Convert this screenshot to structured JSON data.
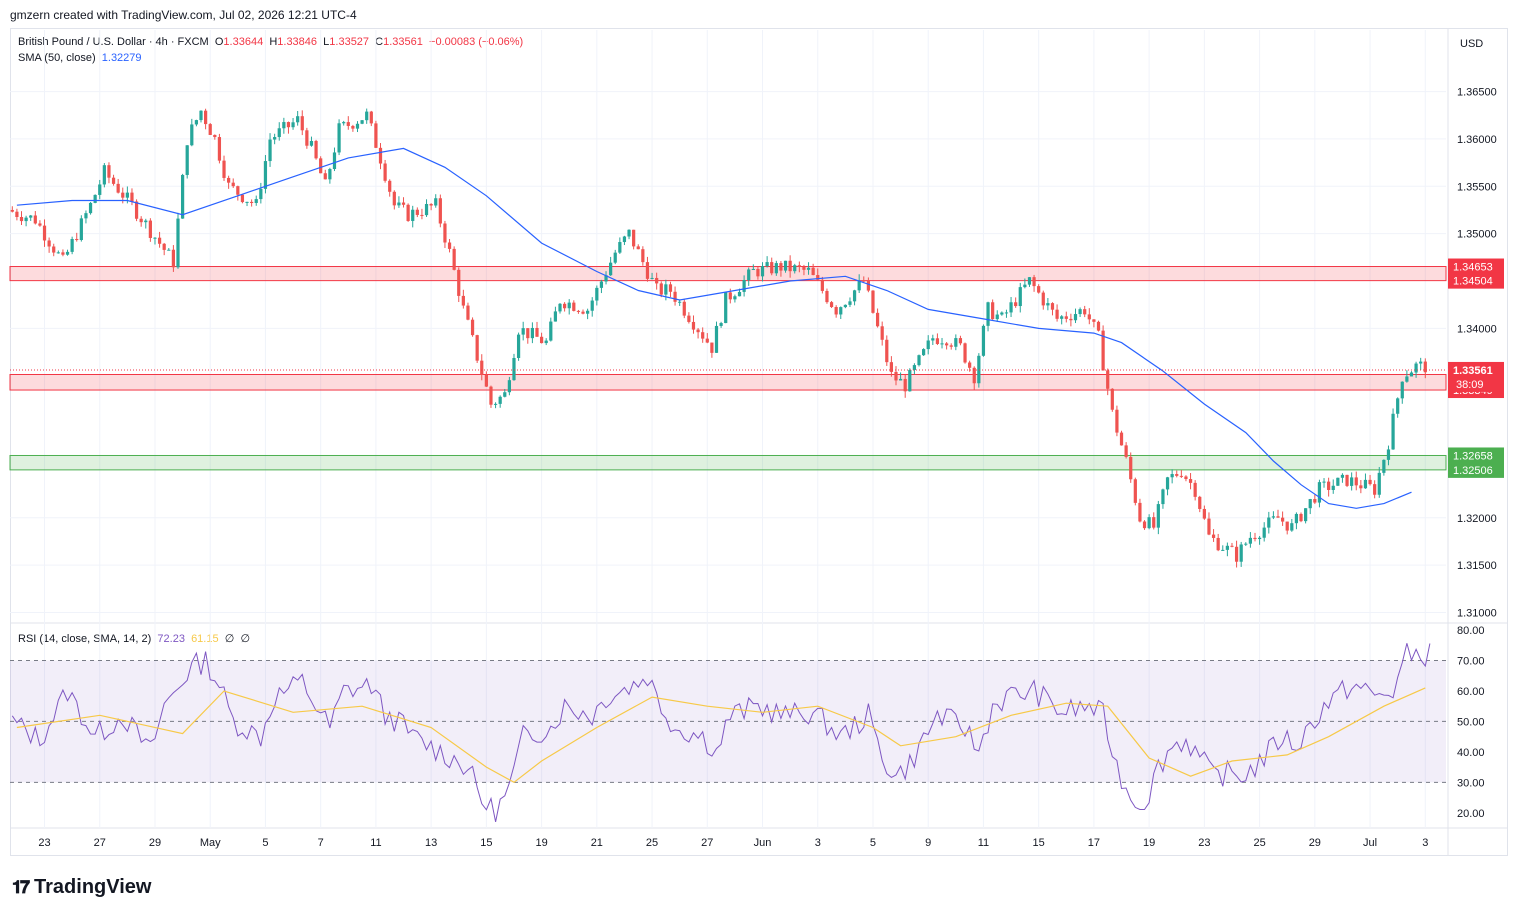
{
  "header": {
    "credit": "gmzern created with TradingView.com, Jul 02, 2026 12:21 UTC-4",
    "symbol": "British Pound / U.S. Dollar · 4h · FXCM",
    "o_label": "O",
    "o": "1.33644",
    "h_label": "H",
    "h": "1.33846",
    "l_label": "L",
    "l": "1.33527",
    "c_label": "C",
    "c": "1.33561",
    "change": "−0.00083 (−0.06%)",
    "sma_label": "SMA (50, close)",
    "sma_value": "1.32279",
    "rsi_label": "RSI (14, close, SMA, 14, 2)",
    "rsi_value": "72.23",
    "rsi_ma_value": "61.15",
    "rsi_extra1": "∅",
    "rsi_extra2": "∅",
    "currency": "USD",
    "logo": "TradingView"
  },
  "colors": {
    "up": "#26a69a",
    "down": "#ef5350",
    "sma": "#2962ff",
    "rsi": "#7e57c2",
    "rsi_ma": "#f7c948",
    "resistance": "#f23645",
    "support": "#4caf50"
  },
  "chart_data": {
    "type": "candlestick",
    "price_axis": {
      "ticks": [
        "1.36500",
        "1.36000",
        "1.35500",
        "1.35000",
        "1.34000",
        "1.32000",
        "1.31500",
        "1.31000"
      ],
      "range": [
        1.309,
        1.3715
      ]
    },
    "x_axis": {
      "labels": [
        "23",
        "27",
        "29",
        "May",
        "5",
        "7",
        "11",
        "13",
        "15",
        "19",
        "21",
        "25",
        "27",
        "Jun",
        "3",
        "5",
        "9",
        "11",
        "15",
        "17",
        "19",
        "23",
        "25",
        "29",
        "Jul",
        "3"
      ],
      "label_positions": [
        2,
        6,
        10,
        14,
        18,
        22,
        26,
        30,
        34,
        38,
        42,
        46,
        50,
        54,
        58,
        62,
        66,
        70,
        74,
        78,
        82,
        86,
        90,
        94,
        98,
        102
      ]
    },
    "zones": [
      {
        "type": "resistance",
        "top": 1.34653,
        "bottom": 1.34504,
        "top_label": "1.34653",
        "bottom_label": "1.34504"
      },
      {
        "type": "resistance",
        "top": 1.33513,
        "bottom": 1.33349,
        "top_label": "1.33513",
        "bottom_label": "1.33349"
      },
      {
        "type": "support",
        "top": 1.32658,
        "bottom": 1.32506,
        "top_label": "1.32658",
        "bottom_label": "1.32506"
      }
    ],
    "last_price": {
      "value": 1.33561,
      "label": "1.33561",
      "countdown": "38:09"
    },
    "keypoints": [
      [
        0,
        1.3525
      ],
      [
        2,
        1.3515
      ],
      [
        4,
        1.347
      ],
      [
        6,
        1.353
      ],
      [
        7,
        1.3565
      ],
      [
        9,
        1.353
      ],
      [
        11,
        1.349
      ],
      [
        12,
        1.347
      ],
      [
        13,
        1.36
      ],
      [
        14,
        1.363
      ],
      [
        15,
        1.36
      ],
      [
        16,
        1.355
      ],
      [
        18,
        1.353
      ],
      [
        19,
        1.36
      ],
      [
        21,
        1.362
      ],
      [
        22,
        1.359
      ],
      [
        23,
        1.355
      ],
      [
        24,
        1.361
      ],
      [
        26,
        1.3625
      ],
      [
        27,
        1.358
      ],
      [
        28,
        1.353
      ],
      [
        29,
        1.352
      ],
      [
        31,
        1.353
      ],
      [
        32,
        1.348
      ],
      [
        33,
        1.342
      ],
      [
        34,
        1.337
      ],
      [
        35,
        1.332
      ],
      [
        36,
        1.333
      ],
      [
        37,
        1.34
      ],
      [
        39,
        1.3385
      ],
      [
        40,
        1.343
      ],
      [
        42,
        1.342
      ],
      [
        43,
        1.345
      ],
      [
        44,
        1.348
      ],
      [
        45,
        1.35
      ],
      [
        47,
        1.344
      ],
      [
        48,
        1.344
      ],
      [
        50,
        1.34
      ],
      [
        51,
        1.338
      ],
      [
        52,
        1.343
      ],
      [
        54,
        1.346
      ],
      [
        56,
        1.3465
      ],
      [
        58,
        1.346
      ],
      [
        60,
        1.342
      ],
      [
        62,
        1.345
      ],
      [
        63,
        1.34
      ],
      [
        64,
        1.335
      ],
      [
        65,
        1.334
      ],
      [
        67,
        1.339
      ],
      [
        68,
        1.339
      ],
      [
        69,
        1.338
      ],
      [
        70,
        1.335
      ],
      [
        71,
        1.342
      ],
      [
        72,
        1.341
      ],
      [
        74,
        1.345
      ],
      [
        76,
        1.341
      ],
      [
        78,
        1.342
      ],
      [
        79,
        1.339
      ],
      [
        80,
        1.331
      ],
      [
        81,
        1.326
      ],
      [
        82,
        1.32
      ],
      [
        83,
        1.319
      ],
      [
        84,
        1.324
      ],
      [
        85,
        1.325
      ],
      [
        86,
        1.323
      ],
      [
        87,
        1.318
      ],
      [
        88,
        1.317
      ],
      [
        89,
        1.316
      ],
      [
        90,
        1.318
      ],
      [
        92,
        1.32
      ],
      [
        93,
        1.319
      ],
      [
        95,
        1.323
      ],
      [
        97,
        1.324
      ],
      [
        99,
        1.323
      ],
      [
        100,
        1.328
      ],
      [
        101,
        1.335
      ],
      [
        102,
        1.336
      ]
    ],
    "sma_points": [
      [
        0,
        1.353
      ],
      [
        4,
        1.3535
      ],
      [
        8,
        1.3535
      ],
      [
        12,
        1.352
      ],
      [
        16,
        1.354
      ],
      [
        20,
        1.356
      ],
      [
        24,
        1.358
      ],
      [
        28,
        1.359
      ],
      [
        31,
        1.357
      ],
      [
        34,
        1.354
      ],
      [
        38,
        1.349
      ],
      [
        42,
        1.346
      ],
      [
        45,
        1.344
      ],
      [
        48,
        1.343
      ],
      [
        52,
        1.344
      ],
      [
        56,
        1.345
      ],
      [
        60,
        1.3455
      ],
      [
        63,
        1.344
      ],
      [
        66,
        1.342
      ],
      [
        70,
        1.341
      ],
      [
        74,
        1.34
      ],
      [
        78,
        1.3395
      ],
      [
        80,
        1.3385
      ],
      [
        83,
        1.3355
      ],
      [
        86,
        1.332
      ],
      [
        89,
        1.329
      ],
      [
        91,
        1.326
      ],
      [
        93,
        1.3235
      ],
      [
        95,
        1.3215
      ],
      [
        97,
        1.321
      ],
      [
        99,
        1.3215
      ],
      [
        101,
        1.3227
      ]
    ],
    "rsi": {
      "ticks": [
        "80.00",
        "70.00",
        "60.00",
        "50.00",
        "40.00",
        "30.00",
        "20.00"
      ],
      "range": [
        15,
        82
      ],
      "overbought": 70,
      "oversold": 30,
      "midline": 50,
      "points": [
        [
          0,
          50
        ],
        [
          2,
          44
        ],
        [
          4,
          60
        ],
        [
          6,
          45
        ],
        [
          8,
          52
        ],
        [
          10,
          40
        ],
        [
          11,
          55
        ],
        [
          13,
          68
        ],
        [
          14,
          70
        ],
        [
          15,
          62
        ],
        [
          16,
          50
        ],
        [
          18,
          45
        ],
        [
          19,
          58
        ],
        [
          21,
          63
        ],
        [
          22,
          55
        ],
        [
          23,
          48
        ],
        [
          24,
          60
        ],
        [
          26,
          62
        ],
        [
          27,
          52
        ],
        [
          28,
          50
        ],
        [
          29,
          45
        ],
        [
          31,
          40
        ],
        [
          33,
          35
        ],
        [
          34,
          24
        ],
        [
          35,
          20
        ],
        [
          36,
          28
        ],
        [
          37,
          45
        ],
        [
          39,
          48
        ],
        [
          40,
          55
        ],
        [
          42,
          52
        ],
        [
          43,
          58
        ],
        [
          45,
          62
        ],
        [
          46,
          65
        ],
        [
          47,
          55
        ],
        [
          48,
          48
        ],
        [
          50,
          45
        ],
        [
          51,
          40
        ],
        [
          52,
          52
        ],
        [
          54,
          55
        ],
        [
          56,
          52
        ],
        [
          58,
          53
        ],
        [
          60,
          45
        ],
        [
          62,
          52
        ],
        [
          63,
          38
        ],
        [
          64,
          32
        ],
        [
          65,
          36
        ],
        [
          67,
          52
        ],
        [
          68,
          50
        ],
        [
          69,
          48
        ],
        [
          70,
          40
        ],
        [
          71,
          55
        ],
        [
          72,
          58
        ],
        [
          74,
          60
        ],
        [
          76,
          53
        ],
        [
          78,
          55
        ],
        [
          79,
          52
        ],
        [
          80,
          35
        ],
        [
          81,
          25
        ],
        [
          82,
          23
        ],
        [
          83,
          35
        ],
        [
          84,
          42
        ],
        [
          85,
          44
        ],
        [
          86,
          38
        ],
        [
          87,
          32
        ],
        [
          88,
          33
        ],
        [
          89,
          32
        ],
        [
          90,
          35
        ],
        [
          92,
          45
        ],
        [
          93,
          42
        ],
        [
          95,
          55
        ],
        [
          97,
          62
        ],
        [
          99,
          58
        ],
        [
          100,
          60
        ],
        [
          101,
          72
        ],
        [
          102,
          72
        ]
      ],
      "ma_points": [
        [
          0,
          48
        ],
        [
          6,
          52
        ],
        [
          12,
          46
        ],
        [
          15,
          60
        ],
        [
          20,
          53
        ],
        [
          25,
          55
        ],
        [
          30,
          48
        ],
        [
          34,
          35
        ],
        [
          36,
          30
        ],
        [
          38,
          37
        ],
        [
          42,
          48
        ],
        [
          46,
          58
        ],
        [
          50,
          55
        ],
        [
          54,
          53
        ],
        [
          58,
          55
        ],
        [
          62,
          48
        ],
        [
          64,
          42
        ],
        [
          68,
          45
        ],
        [
          72,
          52
        ],
        [
          76,
          56
        ],
        [
          79,
          55
        ],
        [
          82,
          38
        ],
        [
          85,
          32
        ],
        [
          88,
          37
        ],
        [
          92,
          39
        ],
        [
          95,
          45
        ],
        [
          99,
          55
        ],
        [
          102,
          61
        ]
      ]
    }
  }
}
